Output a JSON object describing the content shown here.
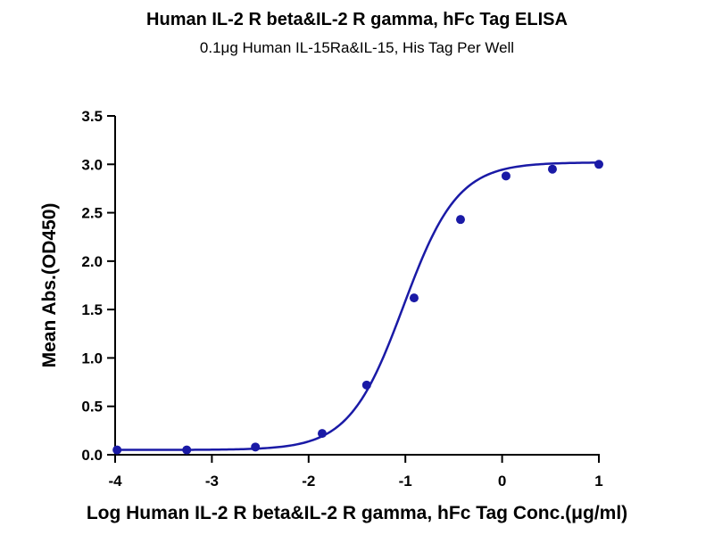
{
  "chart_data": {
    "type": "scatter",
    "title": "Human IL-2 R beta&IL-2 R gamma, hFc Tag ELISA",
    "subtitle": "0.1μg Human IL-15Ra&IL-15, His Tag Per Well",
    "xlabel": "Log Human IL-2 R beta&IL-2 R gamma, hFc Tag Conc.(μg/ml)",
    "ylabel": "Mean Abs.(OD450)",
    "xlim": [
      -4,
      1
    ],
    "ylim": [
      0,
      3.5
    ],
    "xticks": [
      -4,
      -3,
      -2,
      -1,
      0,
      1
    ],
    "yticks": [
      0.0,
      0.5,
      1.0,
      1.5,
      2.0,
      2.5,
      3.0,
      3.5
    ],
    "xtick_labels": [
      "-4",
      "-3",
      "-2",
      "-1",
      "0",
      "1"
    ],
    "ytick_labels": [
      "0.0",
      "0.5",
      "1.0",
      "1.5",
      "2.0",
      "2.5",
      "3.0",
      "3.5"
    ],
    "grid": false,
    "legend": "none",
    "series": [
      {
        "points": [
          {
            "x": -3.98,
            "y": 0.05
          },
          {
            "x": -3.26,
            "y": 0.05
          },
          {
            "x": -2.55,
            "y": 0.08
          },
          {
            "x": -1.86,
            "y": 0.22
          },
          {
            "x": -1.4,
            "y": 0.72
          },
          {
            "x": -0.91,
            "y": 1.62
          },
          {
            "x": -0.43,
            "y": 2.43
          },
          {
            "x": 0.04,
            "y": 2.88
          },
          {
            "x": 0.52,
            "y": 2.95
          },
          {
            "x": 1.0,
            "y": 3.0
          }
        ],
        "fit": {
          "model": "4PL",
          "bottom": 0.05,
          "top": 3.02,
          "logEC50": -1.02,
          "hill": 1.55
        },
        "color": "#1a1aa6"
      }
    ]
  }
}
